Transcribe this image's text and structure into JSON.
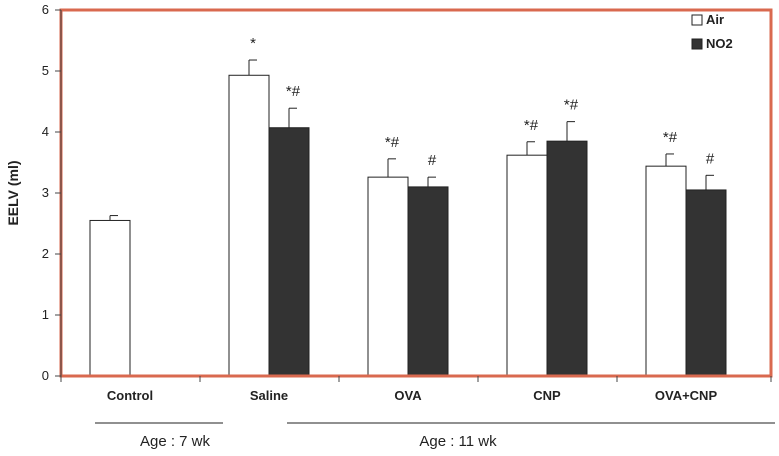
{
  "chart_data": {
    "type": "bar",
    "ylabel": "EELV (ml)",
    "ylim": [
      0,
      6
    ],
    "yticks": [
      "0",
      "1",
      "2",
      "3",
      "4",
      "5",
      "6"
    ],
    "categories": [
      "Control",
      "Saline",
      "OVA",
      "CNP",
      "OVA+CNP"
    ],
    "legend_position": "top-right",
    "grid": false,
    "series": [
      {
        "name": "Air",
        "color": "#ffffff",
        "values": [
          2.55,
          4.93,
          3.26,
          3.62,
          3.44
        ],
        "errors": [
          0.08,
          0.25,
          0.3,
          0.22,
          0.2
        ],
        "annotations": [
          "",
          "*",
          "*#",
          "*#",
          "*#"
        ]
      },
      {
        "name": "NO2",
        "color": "#333333",
        "values": [
          null,
          4.07,
          3.1,
          3.85,
          3.05
        ],
        "errors": [
          null,
          0.32,
          0.16,
          0.32,
          0.24
        ],
        "annotations": [
          "",
          "*#",
          "#",
          "*#",
          "#"
        ]
      }
    ],
    "age_groups": [
      {
        "label": "Age : 7 wk",
        "categories": [
          "Control"
        ]
      },
      {
        "label": "Age : 11 wk",
        "categories": [
          "Saline",
          "OVA",
          "CNP",
          "OVA+CNP"
        ]
      }
    ],
    "frame_color": "#d9694f"
  }
}
